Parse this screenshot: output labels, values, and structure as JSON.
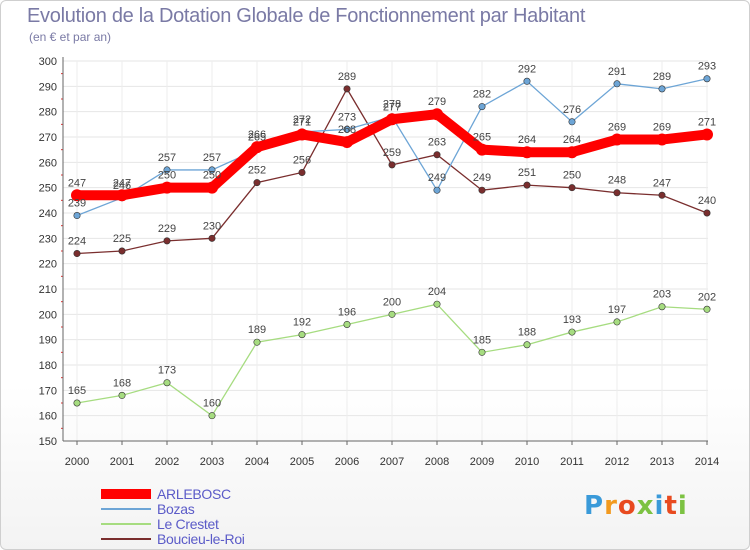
{
  "title": "Evolution de la Dotation Globale de Fonctionnement par Habitant",
  "subtitle": "(en € et par an)",
  "logo": {
    "text": "Proxiti",
    "letter_colors": [
      "#3a9ad9",
      "#f29a1f",
      "#e84a1f",
      "#7cc242",
      "#3a9ad9",
      "#e84a1f",
      "#7cc242"
    ]
  },
  "chart_data": {
    "type": "line",
    "x": [
      "2000",
      "2001",
      "2002",
      "2003",
      "2004",
      "2005",
      "2006",
      "2007",
      "2008",
      "2009",
      "2010",
      "2011",
      "2012",
      "2013",
      "2014"
    ],
    "ylim": [
      150,
      300
    ],
    "yticks": [
      150,
      160,
      170,
      180,
      190,
      200,
      210,
      220,
      230,
      240,
      250,
      260,
      270,
      280,
      290,
      300
    ],
    "grid": true,
    "legend_position": "bottom-left",
    "series": [
      {
        "name": "ARLEBOSC",
        "color": "#ff0000",
        "emphasis": true,
        "values": [
          247,
          247,
          250,
          250,
          266,
          271,
          268,
          277,
          279,
          265,
          264,
          264,
          269,
          269,
          271
        ]
      },
      {
        "name": "Bozas",
        "color": "#6da5d6",
        "values": [
          239,
          246,
          257,
          257,
          265,
          272,
          273,
          278,
          249,
          282,
          292,
          276,
          291,
          289,
          293
        ]
      },
      {
        "name": "Le Crestet",
        "color": "#a6dc80",
        "values": [
          165,
          168,
          173,
          160,
          189,
          192,
          196,
          200,
          204,
          185,
          188,
          193,
          197,
          203,
          202
        ]
      },
      {
        "name": "Boucieu-le-Roi",
        "color": "#7a2e2e",
        "values": [
          224,
          225,
          229,
          230,
          252,
          256,
          289,
          259,
          263,
          249,
          251,
          250,
          248,
          247,
          240
        ]
      }
    ]
  }
}
